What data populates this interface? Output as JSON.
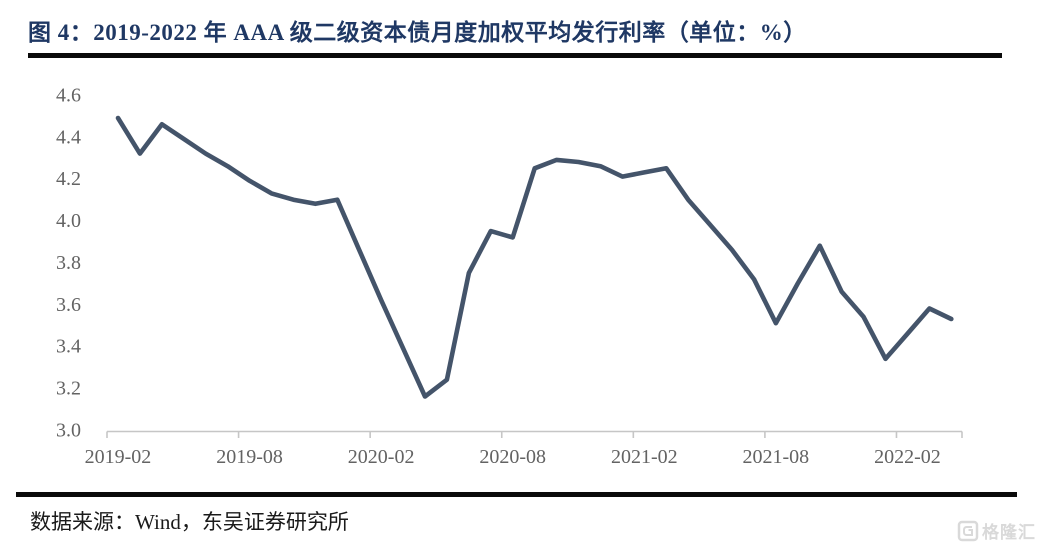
{
  "title": "图 4：2019-2022 年 AAA 级二级资本债月度加权平均发行利率（单位：%）",
  "source": "数据来源：Wind，东吴证券研究所",
  "watermark": {
    "text": "格隆汇"
  },
  "colors": {
    "title": "#1F3864",
    "separator": "#0a0a0a",
    "line": "#44546A",
    "axis_label": "#636363",
    "axis_line": "#C6C6C6",
    "watermark": "#D9D9D9"
  },
  "chart_data": {
    "type": "line",
    "title": "2019-2022 年 AAA 级二级资本债月度加权平均发行利率",
    "unit": "%",
    "x": [
      "2019-02",
      "2019-03",
      "2019-04",
      "2019-05",
      "2019-06",
      "2019-07",
      "2019-08",
      "2019-09",
      "2019-10",
      "2019-11",
      "2019-12",
      "2020-01",
      "2020-02",
      "2020-03",
      "2020-04",
      "2020-05",
      "2020-06",
      "2020-07",
      "2020-08",
      "2020-09",
      "2020-10",
      "2020-11",
      "2020-12",
      "2021-01",
      "2021-02",
      "2021-03",
      "2021-04",
      "2021-05",
      "2021-06",
      "2021-07",
      "2021-08",
      "2021-09",
      "2021-10",
      "2021-11",
      "2021-12",
      "2022-01",
      "2022-02",
      "2022-03",
      "2022-04"
    ],
    "values": [
      4.49,
      4.32,
      4.46,
      4.39,
      4.32,
      4.26,
      4.19,
      4.13,
      4.1,
      4.08,
      4.1,
      3.86,
      3.62,
      3.39,
      3.16,
      3.24,
      3.75,
      3.95,
      3.92,
      4.25,
      4.29,
      4.28,
      4.26,
      4.21,
      4.23,
      4.25,
      4.1,
      3.98,
      3.86,
      3.72,
      3.51,
      3.7,
      3.88,
      3.66,
      3.54,
      3.34,
      3.46,
      3.58,
      3.53
    ],
    "x_tick_labels": [
      "2019-02",
      "2019-08",
      "2020-02",
      "2020-08",
      "2021-02",
      "2021-08",
      "2022-02"
    ],
    "y_tick_labels": [
      "3.0",
      "3.2",
      "3.4",
      "3.6",
      "3.8",
      "4.0",
      "4.2",
      "4.4",
      "4.6"
    ],
    "ylim": [
      3.0,
      4.6
    ],
    "y_tick_step": 0.2,
    "grid": false,
    "legend": "none"
  }
}
